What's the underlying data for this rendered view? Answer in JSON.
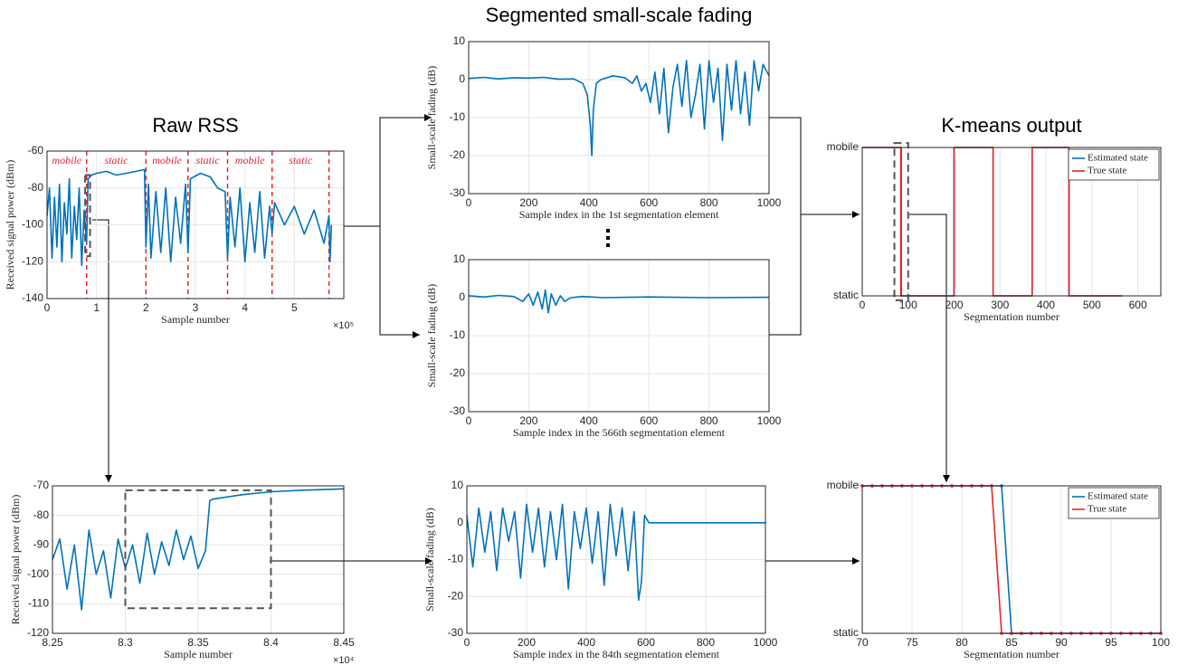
{
  "chart_data": [
    {
      "type": "line",
      "title": "Raw RSS",
      "xlabel": "Sample number",
      "ylabel": "Received signal power (dBm)",
      "x_exponent": "×10⁵",
      "xlim": [
        0,
        6
      ],
      "xticks": [
        0,
        1,
        2,
        3,
        4,
        5
      ],
      "ylim": [
        -140,
        -60
      ],
      "yticks": [
        -140,
        -120,
        -100,
        -80,
        -60
      ],
      "grid": true,
      "segment_labels": [
        "mobile",
        "static",
        "mobile",
        "static",
        "mobile",
        "static"
      ],
      "segment_bounds": [
        0.8,
        2.0,
        2.85,
        3.65,
        4.55,
        5.7
      ],
      "segment_color": "#e8262a",
      "zoom_box": {
        "xlim": [
          0.77,
          0.87
        ],
        "ylim": [
          -117,
          -73
        ]
      },
      "series": [
        {
          "color": "#0072bd",
          "x": [
            0.0,
            0.05,
            0.1,
            0.15,
            0.2,
            0.25,
            0.3,
            0.35,
            0.4,
            0.45,
            0.5,
            0.55,
            0.6,
            0.65,
            0.7,
            0.75,
            0.8,
            0.83,
            0.9,
            1.0,
            1.2,
            1.4,
            1.6,
            1.8,
            1.97,
            2.0,
            2.05,
            2.1,
            2.2,
            2.3,
            2.4,
            2.5,
            2.6,
            2.7,
            2.8,
            2.85,
            2.9,
            3.1,
            3.3,
            3.45,
            3.6,
            3.65,
            3.7,
            3.8,
            3.9,
            4.0,
            4.1,
            4.2,
            4.3,
            4.4,
            4.5,
            4.55,
            4.6,
            4.8,
            5.0,
            5.2,
            5.4,
            5.6,
            5.7,
            5.72,
            5.75
          ],
          "values": [
            -95,
            -80,
            -118,
            -85,
            -112,
            -78,
            -120,
            -88,
            -105,
            -75,
            -118,
            -90,
            -108,
            -80,
            -122,
            -92,
            -110,
            -75,
            -73,
            -72,
            -71,
            -73,
            -72,
            -71,
            -70,
            -112,
            -78,
            -118,
            -82,
            -115,
            -80,
            -120,
            -85,
            -110,
            -78,
            -115,
            -75,
            -72,
            -74,
            -80,
            -82,
            -118,
            -85,
            -112,
            -80,
            -120,
            -88,
            -115,
            -82,
            -118,
            -90,
            -105,
            -88,
            -100,
            -90,
            -105,
            -92,
            -110,
            -95,
            -120,
            -100
          ]
        }
      ]
    },
    {
      "type": "line",
      "title": "Segmented small-scale fading",
      "xlabel": "Sample index in the 1st segmentation element",
      "ylabel": "Small-scale fading (dB)",
      "xlim": [
        0,
        1000
      ],
      "xticks": [
        0,
        200,
        400,
        600,
        800,
        1000
      ],
      "ylim": [
        -30,
        10
      ],
      "yticks": [
        -30,
        -20,
        -10,
        0,
        10
      ],
      "grid": true,
      "series": [
        {
          "color": "#0072bd",
          "x": [
            0,
            50,
            100,
            150,
            200,
            250,
            300,
            350,
            380,
            395,
            405,
            410,
            415,
            425,
            440,
            480,
            520,
            545,
            560,
            575,
            590,
            605,
            620,
            635,
            650,
            665,
            680,
            695,
            710,
            725,
            740,
            755,
            770,
            785,
            800,
            815,
            830,
            845,
            860,
            875,
            890,
            905,
            920,
            935,
            950,
            965,
            980,
            1000
          ],
          "values": [
            0.3,
            0.6,
            0.2,
            0.5,
            0.4,
            0.6,
            0.1,
            0.2,
            -1,
            -4,
            -12,
            -20,
            -8,
            -1,
            0,
            1,
            0.5,
            -1,
            1,
            -3,
            -1,
            -6,
            2,
            -9,
            3,
            -14,
            -2,
            4,
            -7,
            5,
            -10,
            -4,
            4,
            -13,
            5,
            -6,
            3,
            -16,
            4,
            -8,
            5,
            -9,
            2,
            -12,
            5,
            -3,
            4,
            1
          ]
        }
      ]
    },
    {
      "type": "line",
      "xlabel": "Sample index in the 566th segmentation element",
      "ylabel": "Small-scale fading (dB)",
      "xlim": [
        0,
        1000
      ],
      "xticks": [
        0,
        200,
        400,
        600,
        800,
        1000
      ],
      "ylim": [
        -30,
        10
      ],
      "yticks": [
        -30,
        -20,
        -10,
        0,
        10
      ],
      "grid": true,
      "series": [
        {
          "color": "#0072bd",
          "x": [
            0,
            50,
            100,
            150,
            180,
            200,
            215,
            230,
            245,
            255,
            265,
            275,
            290,
            305,
            320,
            340,
            380,
            450,
            600,
            800,
            1000
          ],
          "values": [
            0.5,
            0.2,
            0.6,
            0.3,
            -1,
            1,
            -2,
            1.5,
            -3,
            2,
            -4,
            1,
            -2,
            0.5,
            -1,
            0,
            0.3,
            0,
            0.2,
            0,
            0.1
          ]
        }
      ]
    },
    {
      "type": "line",
      "title": "K-means output",
      "xlabel": "Segmentation number",
      "xlim": [
        0,
        650
      ],
      "xticks": [
        0,
        100,
        200,
        300,
        400,
        500,
        600
      ],
      "ylim": [
        0,
        1
      ],
      "yticks": [
        {
          "value": 0,
          "label": "static"
        },
        {
          "value": 1,
          "label": "mobile"
        }
      ],
      "grid": true,
      "legend": "upper right",
      "zoom_box": {
        "xlim": [
          70,
          100
        ],
        "ylim": [
          -0.03,
          1.03
        ]
      },
      "series": [
        {
          "name": "Estimated state",
          "color": "#0072bd",
          "x": [
            0,
            85,
            85,
            200,
            200,
            285,
            285,
            370,
            370,
            450,
            450,
            566
          ],
          "values": [
            1,
            1,
            0,
            0,
            1,
            1,
            0,
            0,
            1,
            1,
            0,
            0
          ]
        },
        {
          "name": "True state",
          "color": "#e8262a",
          "x": [
            0,
            84,
            84,
            200,
            200,
            285,
            285,
            370,
            370,
            450,
            450,
            566
          ],
          "values": [
            1,
            1,
            0,
            0,
            1,
            1,
            0,
            0,
            1,
            1,
            0,
            0
          ]
        }
      ]
    },
    {
      "type": "line",
      "xlabel": "Sample number",
      "ylabel": "Received signal power (dBm)",
      "x_exponent": "×10⁴",
      "xlim": [
        8.25,
        8.45
      ],
      "xticks": [
        8.25,
        8.3,
        8.35,
        8.4,
        8.45
      ],
      "ylim": [
        -120,
        -70
      ],
      "yticks": [
        -120,
        -110,
        -100,
        -90,
        -80,
        -70
      ],
      "grid": true,
      "zoom_box": {
        "xlim": [
          8.3,
          8.4
        ],
        "ylim": [
          -111.5,
          -71.5
        ]
      },
      "series": [
        {
          "color": "#0072bd",
          "x": [
            8.25,
            8.255,
            8.26,
            8.265,
            8.27,
            8.275,
            8.28,
            8.285,
            8.29,
            8.295,
            8.3,
            8.305,
            8.31,
            8.315,
            8.32,
            8.325,
            8.33,
            8.335,
            8.34,
            8.345,
            8.35,
            8.355,
            8.358,
            8.36,
            8.38,
            8.4,
            8.42,
            8.45
          ],
          "values": [
            -95,
            -88,
            -105,
            -90,
            -112,
            -85,
            -100,
            -92,
            -108,
            -88,
            -98,
            -90,
            -103,
            -86,
            -100,
            -89,
            -97,
            -85,
            -95,
            -87,
            -98,
            -92,
            -75,
            -74.5,
            -73,
            -72,
            -71.5,
            -71
          ]
        }
      ]
    },
    {
      "type": "line",
      "xlabel": "Sample index in the 84th segmentation element",
      "ylabel": "Small-scale fading (dB)",
      "xlim": [
        0,
        1000
      ],
      "xticks": [
        0,
        200,
        400,
        600,
        800,
        1000
      ],
      "ylim": [
        -30,
        10
      ],
      "yticks": [
        -30,
        -20,
        -10,
        0,
        10
      ],
      "grid": true,
      "series": [
        {
          "color": "#0072bd",
          "x": [
            0,
            20,
            40,
            60,
            80,
            100,
            120,
            140,
            160,
            180,
            200,
            220,
            240,
            260,
            280,
            300,
            320,
            340,
            360,
            380,
            400,
            420,
            440,
            460,
            480,
            500,
            520,
            540,
            560,
            575,
            585,
            595,
            610,
            700,
            850,
            1000
          ],
          "values": [
            2,
            -12,
            4,
            -8,
            3,
            -13,
            4,
            -5,
            3,
            -15,
            5,
            -8,
            4,
            -12,
            3,
            -10,
            5,
            -18,
            3,
            -7,
            4,
            -11,
            3,
            -17,
            5,
            -9,
            4,
            -13,
            3,
            -21,
            -16,
            2,
            0,
            0,
            0,
            0
          ]
        }
      ]
    },
    {
      "type": "line",
      "xlabel": "Segmentation number",
      "markers": true,
      "xlim": [
        70,
        100
      ],
      "xticks": [
        70,
        75,
        80,
        85,
        90,
        95,
        100
      ],
      "ylim": [
        0,
        1
      ],
      "yticks": [
        {
          "value": 0,
          "label": "static"
        },
        {
          "value": 1,
          "label": "mobile"
        }
      ],
      "grid": true,
      "legend": "upper right",
      "series": [
        {
          "name": "Estimated state",
          "color": "#0072bd",
          "x": [
            70,
            71,
            72,
            73,
            74,
            75,
            76,
            77,
            78,
            79,
            80,
            81,
            82,
            83,
            84,
            85,
            86,
            87,
            88,
            89,
            90,
            91,
            92,
            93,
            94,
            95,
            96,
            97,
            98,
            99,
            100
          ],
          "values": [
            1,
            1,
            1,
            1,
            1,
            1,
            1,
            1,
            1,
            1,
            1,
            1,
            1,
            1,
            1,
            0,
            0,
            0,
            0,
            0,
            0,
            0,
            0,
            0,
            0,
            0,
            0,
            0,
            0,
            0,
            0
          ]
        },
        {
          "name": "True state",
          "color": "#e8262a",
          "x": [
            70,
            71,
            72,
            73,
            74,
            75,
            76,
            77,
            78,
            79,
            80,
            81,
            82,
            83,
            84,
            85,
            86,
            87,
            88,
            89,
            90,
            91,
            92,
            93,
            94,
            95,
            96,
            97,
            98,
            99,
            100
          ],
          "values": [
            1,
            1,
            1,
            1,
            1,
            1,
            1,
            1,
            1,
            1,
            1,
            1,
            1,
            1,
            0,
            0,
            0,
            0,
            0,
            0,
            0,
            0,
            0,
            0,
            0,
            0,
            0,
            0,
            0,
            0,
            0
          ]
        }
      ]
    }
  ]
}
